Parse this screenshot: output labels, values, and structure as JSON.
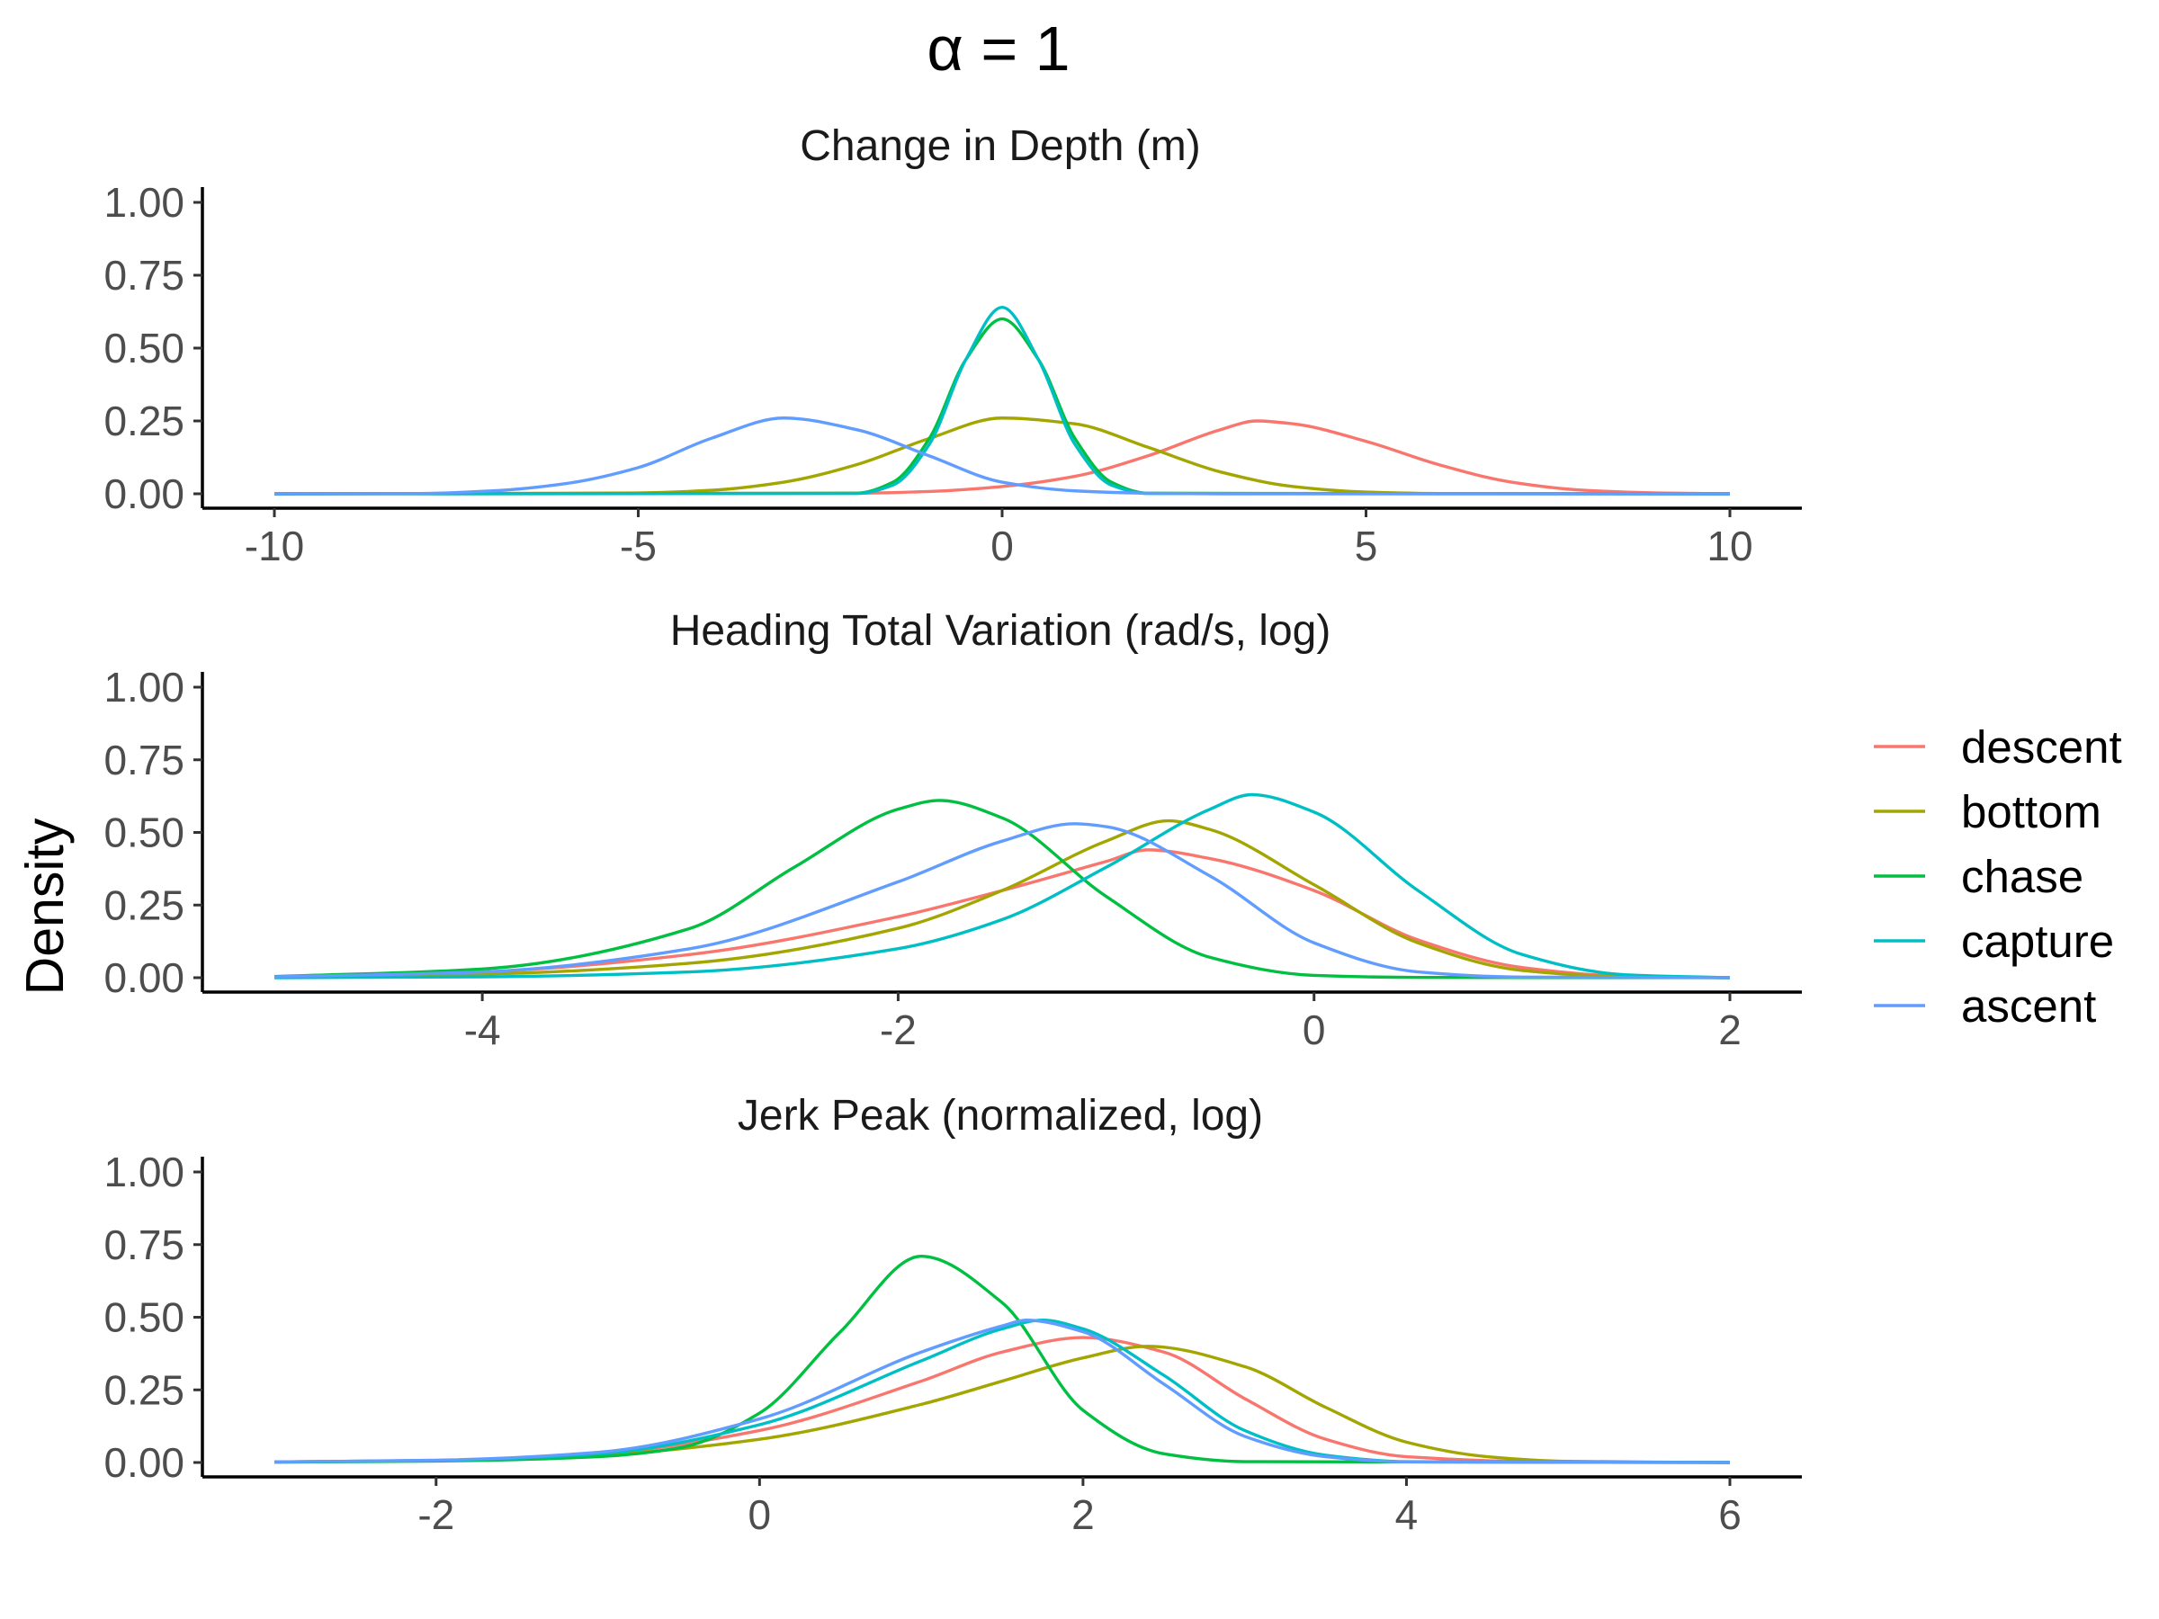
{
  "title": "α = 1",
  "ylabel": "Density",
  "legend": {
    "placement": "right",
    "entries": [
      {
        "label": "descent",
        "color": "#F8766D"
      },
      {
        "label": "bottom",
        "color": "#A3A500"
      },
      {
        "label": "chase",
        "color": "#00BF41"
      },
      {
        "label": "capture",
        "color": "#00BFC4"
      },
      {
        "label": "ascent",
        "color": "#619CFF"
      }
    ]
  },
  "chart_data": [
    {
      "type": "line",
      "title": "Change in Depth (m)",
      "xlim": [
        -10,
        10
      ],
      "ylim": [
        0,
        1
      ],
      "xticks": [
        -10,
        -5,
        0,
        5,
        10
      ],
      "xtick_labels": [
        "-10",
        "-5",
        "0",
        "5",
        "10"
      ],
      "yticks": [
        0,
        0.25,
        0.5,
        0.75,
        1
      ],
      "ytick_labels": [
        "0.00",
        "0.25",
        "0.50",
        "0.75",
        "1.00"
      ],
      "grid": false,
      "series": [
        {
          "name": "descent",
          "color": "#F8766D",
          "x": [
            -10,
            -2,
            -1,
            0,
            1,
            2,
            3,
            3.5,
            4,
            5,
            6,
            7,
            8,
            9,
            10
          ],
          "y": [
            0,
            0.002,
            0.008,
            0.025,
            0.06,
            0.13,
            0.22,
            0.25,
            0.24,
            0.18,
            0.1,
            0.04,
            0.012,
            0.003,
            0
          ]
        },
        {
          "name": "bottom",
          "color": "#A3A500",
          "x": [
            -10,
            -5,
            -4,
            -3,
            -2,
            -1,
            0,
            1,
            2,
            3,
            4,
            5,
            6,
            10
          ],
          "y": [
            0,
            0.003,
            0.012,
            0.04,
            0.1,
            0.19,
            0.26,
            0.24,
            0.16,
            0.075,
            0.025,
            0.006,
            0.001,
            0
          ]
        },
        {
          "name": "chase",
          "color": "#00BF41",
          "x": [
            -10,
            -2,
            -1.5,
            -1,
            -0.5,
            0,
            0.5,
            1,
            1.5,
            2,
            10
          ],
          "y": [
            0,
            0.002,
            0.04,
            0.19,
            0.46,
            0.6,
            0.46,
            0.19,
            0.04,
            0.002,
            0
          ]
        },
        {
          "name": "capture",
          "color": "#00BFC4",
          "x": [
            -10,
            -2,
            -1.5,
            -1,
            -0.5,
            0,
            0.5,
            1,
            1.5,
            2,
            10
          ],
          "y": [
            0,
            0.001,
            0.03,
            0.17,
            0.46,
            0.64,
            0.46,
            0.17,
            0.03,
            0.001,
            0
          ]
        },
        {
          "name": "ascent",
          "color": "#619CFF",
          "x": [
            -10,
            -8,
            -7,
            -6,
            -5,
            -4,
            -3,
            -2,
            -1,
            0,
            1,
            2,
            3,
            10
          ],
          "y": [
            0,
            0.001,
            0.01,
            0.035,
            0.09,
            0.19,
            0.26,
            0.22,
            0.13,
            0.04,
            0.01,
            0.002,
            0,
            0
          ]
        }
      ]
    },
    {
      "type": "line",
      "title": "Heading Total Variation (rad/s, log)",
      "xlim": [
        -5,
        2
      ],
      "ylim": [
        0,
        1
      ],
      "xticks": [
        -4,
        -2,
        0,
        2
      ],
      "xtick_labels": [
        "-4",
        "-2",
        "0",
        "2"
      ],
      "yticks": [
        0,
        0.25,
        0.5,
        0.75,
        1
      ],
      "ytick_labels": [
        "0.00",
        "0.25",
        "0.50",
        "0.75",
        "1.00"
      ],
      "grid": false,
      "series": [
        {
          "name": "descent",
          "color": "#F8766D",
          "x": [
            -5,
            -4,
            -3,
            -2,
            -1.5,
            -1,
            -0.8,
            -0.5,
            0,
            0.5,
            1,
            1.5,
            2
          ],
          "y": [
            0.003,
            0.02,
            0.08,
            0.21,
            0.3,
            0.4,
            0.44,
            0.41,
            0.3,
            0.13,
            0.035,
            0.005,
            0
          ]
        },
        {
          "name": "bottom",
          "color": "#A3A500",
          "x": [
            -5,
            -4,
            -3,
            -2,
            -1.5,
            -1,
            -0.7,
            -0.5,
            0,
            0.5,
            1,
            1.5,
            2
          ],
          "y": [
            0.002,
            0.012,
            0.05,
            0.17,
            0.3,
            0.47,
            0.54,
            0.51,
            0.32,
            0.12,
            0.025,
            0.003,
            0
          ]
        },
        {
          "name": "chase",
          "color": "#00BF41",
          "x": [
            -5,
            -4,
            -3,
            -2.5,
            -2,
            -1.8,
            -1.5,
            -1,
            -0.5,
            0,
            0.5,
            2
          ],
          "y": [
            0.004,
            0.03,
            0.17,
            0.38,
            0.58,
            0.61,
            0.55,
            0.28,
            0.07,
            0.008,
            0.001,
            0
          ]
        },
        {
          "name": "capture",
          "color": "#00BFC4",
          "x": [
            -5,
            -4,
            -3,
            -2,
            -1.5,
            -1,
            -0.5,
            -0.3,
            0,
            0.5,
            1,
            1.5,
            2
          ],
          "y": [
            0,
            0.003,
            0.02,
            0.1,
            0.2,
            0.38,
            0.58,
            0.63,
            0.57,
            0.3,
            0.08,
            0.01,
            0
          ]
        },
        {
          "name": "ascent",
          "color": "#619CFF",
          "x": [
            -5,
            -4,
            -3,
            -2,
            -1.5,
            -1.15,
            -1,
            -0.5,
            0,
            0.5,
            1,
            2
          ],
          "y": [
            0.003,
            0.02,
            0.1,
            0.33,
            0.47,
            0.53,
            0.52,
            0.35,
            0.12,
            0.02,
            0.002,
            0
          ]
        }
      ]
    },
    {
      "type": "line",
      "title": "Jerk Peak (normalized, log)",
      "xlim": [
        -3,
        6
      ],
      "ylim": [
        0,
        1
      ],
      "xticks": [
        -2,
        0,
        2,
        4,
        6
      ],
      "xtick_labels": [
        "-2",
        "0",
        "2",
        "4",
        "6"
      ],
      "yticks": [
        0,
        0.25,
        0.5,
        0.75,
        1
      ],
      "ytick_labels": [
        "0.00",
        "0.25",
        "0.50",
        "0.75",
        "1.00"
      ],
      "grid": false,
      "series": [
        {
          "name": "descent",
          "color": "#F8766D",
          "x": [
            -3,
            -2,
            -1,
            0,
            1,
            1.5,
            2,
            2.5,
            3,
            3.5,
            4,
            5,
            6
          ],
          "y": [
            0.002,
            0.007,
            0.03,
            0.11,
            0.28,
            0.38,
            0.43,
            0.38,
            0.22,
            0.08,
            0.02,
            0.001,
            0
          ]
        },
        {
          "name": "bottom",
          "color": "#A3A500",
          "x": [
            -3,
            -2,
            -1,
            0,
            1,
            1.5,
            2,
            2.4,
            3,
            3.5,
            4,
            4.5,
            5,
            6
          ],
          "y": [
            0.002,
            0.006,
            0.025,
            0.08,
            0.2,
            0.28,
            0.36,
            0.4,
            0.33,
            0.19,
            0.07,
            0.02,
            0.004,
            0
          ]
        },
        {
          "name": "chase",
          "color": "#00BF41",
          "x": [
            -3,
            -2,
            -1,
            -0.5,
            0,
            0.5,
            1,
            1.5,
            2,
            2.5,
            3,
            6
          ],
          "y": [
            0.001,
            0.005,
            0.02,
            0.05,
            0.17,
            0.45,
            0.71,
            0.55,
            0.18,
            0.03,
            0.003,
            0
          ]
        },
        {
          "name": "capture",
          "color": "#00BFC4",
          "x": [
            -3,
            -2,
            -1,
            0,
            1,
            1.5,
            1.75,
            2,
            2.5,
            3,
            3.5,
            4,
            6
          ],
          "y": [
            0.002,
            0.007,
            0.03,
            0.13,
            0.35,
            0.46,
            0.49,
            0.46,
            0.3,
            0.11,
            0.025,
            0.003,
            0
          ]
        },
        {
          "name": "ascent",
          "color": "#619CFF",
          "x": [
            -3,
            -2,
            -1,
            0,
            1,
            1.5,
            1.65,
            2,
            2.5,
            3,
            3.5,
            4,
            6
          ],
          "y": [
            0.002,
            0.008,
            0.035,
            0.15,
            0.38,
            0.47,
            0.49,
            0.45,
            0.27,
            0.09,
            0.02,
            0.002,
            0
          ]
        }
      ]
    }
  ]
}
